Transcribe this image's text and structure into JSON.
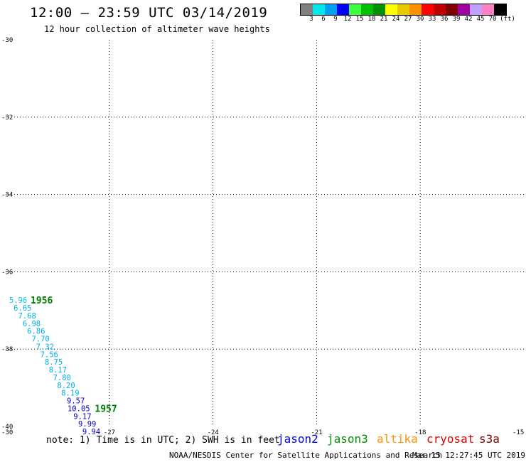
{
  "header": {
    "title": "12:00 – 23:59 UTC 03/14/2019",
    "subtitle": "12 hour collection of altimeter wave heights"
  },
  "legend": {
    "colors": [
      "#808080",
      "#00e8e8",
      "#00a0f0",
      "#0000ff",
      "#40ff40",
      "#00c000",
      "#009000",
      "#ffff00",
      "#e8c800",
      "#ff9000",
      "#ff0000",
      "#c00000",
      "#800000",
      "#a000a0",
      "#c0a0ff",
      "#ff80c0",
      "#000000"
    ],
    "labels": [
      "3",
      "6",
      "9",
      "12",
      "15",
      "18",
      "21",
      "24",
      "27",
      "30",
      "33",
      "36",
      "39",
      "42",
      "45",
      "70",
      "(ft)"
    ]
  },
  "map": {
    "lat_labels": [
      "-30",
      "-32",
      "-34",
      "-36",
      "-38",
      "-40"
    ],
    "lon_labels": [
      "-30",
      "-27",
      "-24",
      "-21",
      "-18",
      "-15"
    ],
    "grid_lines": "dotted"
  },
  "track": {
    "points": [
      {
        "lat": -36.73,
        "lon": -29.9,
        "label": "5.96",
        "color": "#00c8e8"
      },
      {
        "lat": -36.93,
        "lon": -29.77,
        "label": "6.65",
        "color": "#00b0e8"
      },
      {
        "lat": -37.13,
        "lon": -29.64,
        "label": "7.68",
        "color": "#00b0e8"
      },
      {
        "lat": -37.33,
        "lon": -29.51,
        "label": "6.98",
        "color": "#00b0e8"
      },
      {
        "lat": -37.53,
        "lon": -29.38,
        "label": "6.86",
        "color": "#00b0e8"
      },
      {
        "lat": -37.73,
        "lon": -29.25,
        "label": "7.70",
        "color": "#00b0e8"
      },
      {
        "lat": -37.93,
        "lon": -29.12,
        "label": "7.32",
        "color": "#00b0e8"
      },
      {
        "lat": -38.13,
        "lon": -29.0,
        "label": "7.56",
        "color": "#00b0e8"
      },
      {
        "lat": -38.33,
        "lon": -28.87,
        "label": "8.75",
        "color": "#00b0e8"
      },
      {
        "lat": -38.53,
        "lon": -28.75,
        "label": "8.17",
        "color": "#00b0e8"
      },
      {
        "lat": -38.73,
        "lon": -28.63,
        "label": "7.80",
        "color": "#00b0e8"
      },
      {
        "lat": -38.93,
        "lon": -28.51,
        "label": "8.20",
        "color": "#00b0e8"
      },
      {
        "lat": -39.13,
        "lon": -28.39,
        "label": "8.19",
        "color": "#00b0e8"
      },
      {
        "lat": -39.33,
        "lon": -28.23,
        "label": "9.57",
        "color": "#0000c8"
      },
      {
        "lat": -39.53,
        "lon": -28.21,
        "label": "10.05",
        "color": "#0000c8"
      },
      {
        "lat": -39.73,
        "lon": -28.04,
        "label": "9.17",
        "color": "#0000c8"
      },
      {
        "lat": -39.93,
        "lon": -27.9,
        "label": "9.99",
        "color": "#0000c8"
      },
      {
        "lat": -40.13,
        "lon": -27.78,
        "label": "9.94",
        "color": "#0000c8"
      }
    ],
    "times": [
      {
        "lat": -36.73,
        "lon": -29.28,
        "label": "1956"
      },
      {
        "lat": -39.53,
        "lon": -27.42,
        "label": "1957"
      }
    ]
  },
  "footer": {
    "note": "note: 1) Time is in UTC; 2) SWH is in feet",
    "satellites": [
      {
        "name": "jason2",
        "color": "#0000e0"
      },
      {
        "name": "jason3",
        "color": "#009000"
      },
      {
        "name": "altika",
        "color": "#ff9000"
      },
      {
        "name": "cryosat",
        "color": "#e00000"
      },
      {
        "name": "s3a",
        "color": "#800000"
      }
    ],
    "credit": "NOAA/NESDIS Center for Satellite Applications and Research",
    "timestamp": "Mar 15 12:27:45 UTC 2019"
  }
}
